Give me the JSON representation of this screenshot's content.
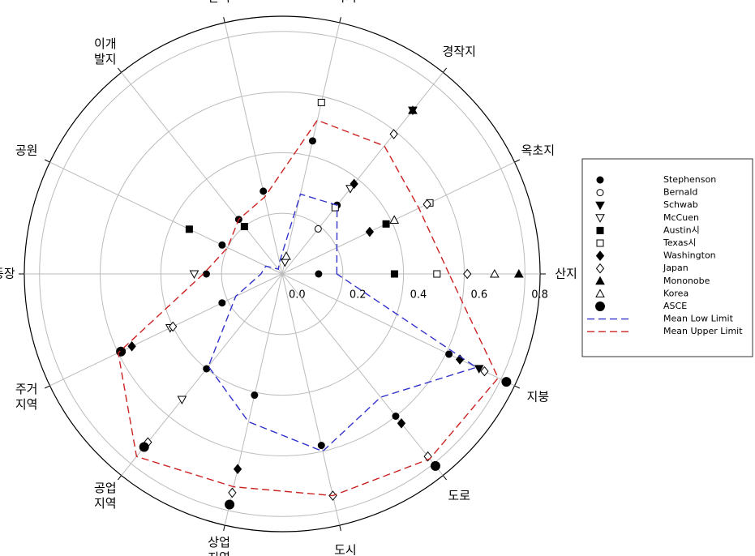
{
  "chart_data": {
    "type": "polar",
    "categories": [
      "산지",
      "옥초지",
      "경작지",
      "나지",
      "잔디",
      "이개\n발지",
      "공원",
      "운동장",
      "주거\n지역",
      "공업\n지역",
      "상업\n지역",
      "도시",
      "도로",
      "지붕"
    ],
    "rlim": [
      0,
      0.85
    ],
    "rticks": [
      {
        "value": 0,
        "label": "0.0"
      },
      0.2,
      0.4,
      0.6,
      0.8
    ],
    "grid": true,
    "series": [
      {
        "name": "Stephenson",
        "color": "#000000",
        "marker": "circle",
        "filled": true,
        "values": [
          0.12,
          null,
          0.29,
          0.45,
          0.28,
          0.23,
          0.22,
          0.25,
          0.22,
          0.4,
          0.41,
          0.58,
          0.6,
          0.61
        ]
      },
      {
        "name": "Bernald",
        "color": "#000000",
        "marker": "circle",
        "filled": false,
        "values": [
          null,
          null,
          0.19,
          null,
          null,
          null,
          null,
          null,
          null,
          null,
          null,
          null,
          null,
          null
        ]
      },
      {
        "name": "Schwab",
        "color": "#000000",
        "marker": "triangle-down",
        "filled": true,
        "values": [
          null,
          null,
          0.69,
          null,
          null,
          null,
          null,
          null,
          null,
          null,
          null,
          null,
          null,
          0.72
        ]
      },
      {
        "name": "McCuen",
        "color": "#000000",
        "marker": "triangle-down",
        "filled": false,
        "values": [
          null,
          null,
          0.36,
          0.04,
          null,
          null,
          null,
          0.29,
          0.41,
          0.53,
          null,
          null,
          null,
          null
        ]
      },
      {
        "name": "Austin시",
        "color": "#000000",
        "marker": "square",
        "filled": true,
        "values": [
          0.37,
          0.38,
          null,
          null,
          null,
          0.2,
          0.34,
          null,
          null,
          null,
          null,
          null,
          null,
          null
        ]
      },
      {
        "name": "Texas시",
        "color": "#000000",
        "marker": "square",
        "filled": false,
        "values": [
          0.51,
          0.54,
          0.28,
          0.58,
          null,
          null,
          null,
          null,
          null,
          null,
          null,
          null,
          null,
          null
        ]
      },
      {
        "name": "Washington",
        "color": "#000000",
        "marker": "diamond",
        "filled": true,
        "values": [
          null,
          0.32,
          0.38,
          null,
          null,
          null,
          null,
          null,
          0.55,
          null,
          0.66,
          null,
          0.63,
          0.65
        ]
      },
      {
        "name": "Japan",
        "color": "#000000",
        "marker": "diamond",
        "filled": false,
        "values": [
          0.61,
          0.53,
          0.59,
          null,
          null,
          null,
          null,
          null,
          0.4,
          0.71,
          0.74,
          0.75,
          0.77,
          0.74
        ]
      },
      {
        "name": "Mononobe",
        "color": "#000000",
        "marker": "triangle-up",
        "filled": true,
        "values": [
          0.78,
          null,
          0.69,
          null,
          null,
          null,
          null,
          null,
          null,
          null,
          null,
          null,
          null,
          null
        ]
      },
      {
        "name": "Korea",
        "color": "#000000",
        "marker": "triangle-up",
        "filled": false,
        "values": [
          0.7,
          0.41,
          null,
          0.06,
          null,
          null,
          null,
          null,
          null,
          null,
          null,
          null,
          null,
          null
        ]
      },
      {
        "name": "ASCE",
        "color": "#000000",
        "marker": "circle-big",
        "filled": true,
        "values": [
          null,
          null,
          null,
          null,
          null,
          null,
          null,
          null,
          0.59,
          0.73,
          0.78,
          null,
          0.81,
          0.82
        ]
      },
      {
        "name": "Mean Low Limit",
        "color": "#3333cc",
        "marker": "dash",
        "values": [
          0.18,
          0.2,
          0.29,
          0.27,
          0.04,
          0.02,
          0.06,
          0.07,
          0.17,
          0.39,
          0.5,
          0.6,
          0.52,
          0.71
        ]
      },
      {
        "name": "Mean Upper Limit",
        "color": "#cc2222",
        "marker": "dash",
        "values": [
          0.55,
          0.5,
          0.54,
          0.52,
          0.26,
          0.23,
          0.2,
          0.26,
          0.6,
          0.77,
          0.72,
          0.75,
          0.78,
          0.79
        ]
      }
    ]
  }
}
